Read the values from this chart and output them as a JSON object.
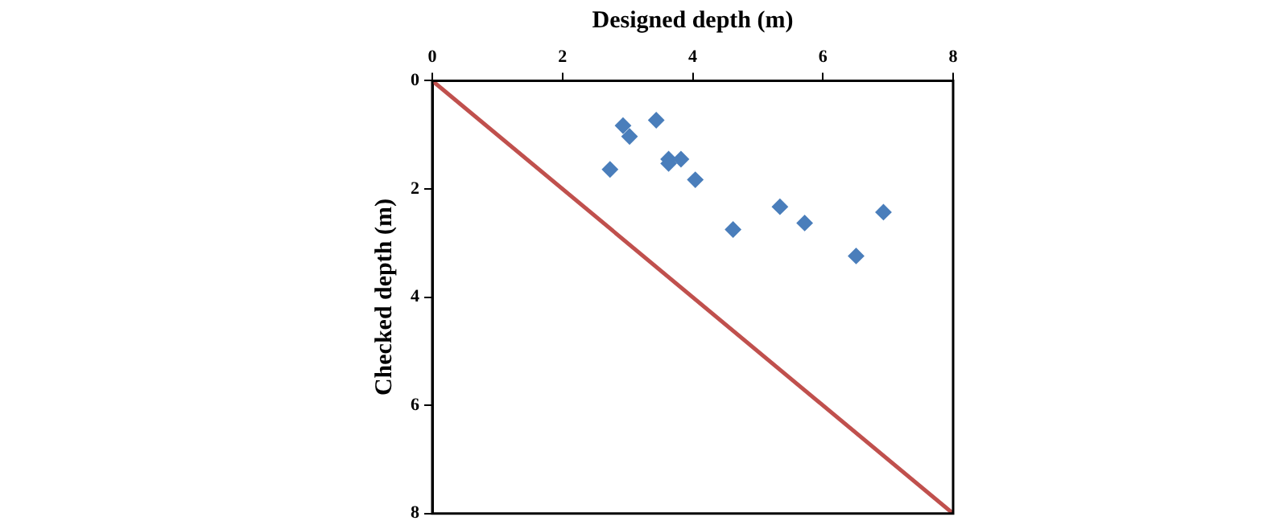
{
  "chart_data": {
    "type": "scatter",
    "xlabel": "Designed depth (m)",
    "ylabel": "Checked depth (m)",
    "xlim": [
      0,
      8
    ],
    "xticks": [
      0,
      2,
      4,
      6,
      8
    ],
    "ylim": [
      8,
      0
    ],
    "yticks": [
      0,
      2,
      4,
      6,
      8
    ],
    "grid": false,
    "legend": false,
    "marker": "diamond",
    "series": [
      {
        "color": "#4a7ebb",
        "x": [
          2.93,
          3.03,
          3.44,
          2.73,
          3.63,
          3.63,
          3.82,
          4.04,
          5.34,
          5.72,
          6.93,
          4.62,
          6.51
        ],
        "values": [
          0.83,
          1.03,
          0.73,
          1.64,
          1.45,
          1.53,
          1.45,
          1.83,
          2.33,
          2.63,
          2.43,
          2.75,
          3.24
        ]
      },
      {
        "type": "line",
        "color": "#c0504d",
        "x": [
          0,
          8
        ],
        "values": [
          0,
          8
        ],
        "marker": "none"
      }
    ]
  }
}
